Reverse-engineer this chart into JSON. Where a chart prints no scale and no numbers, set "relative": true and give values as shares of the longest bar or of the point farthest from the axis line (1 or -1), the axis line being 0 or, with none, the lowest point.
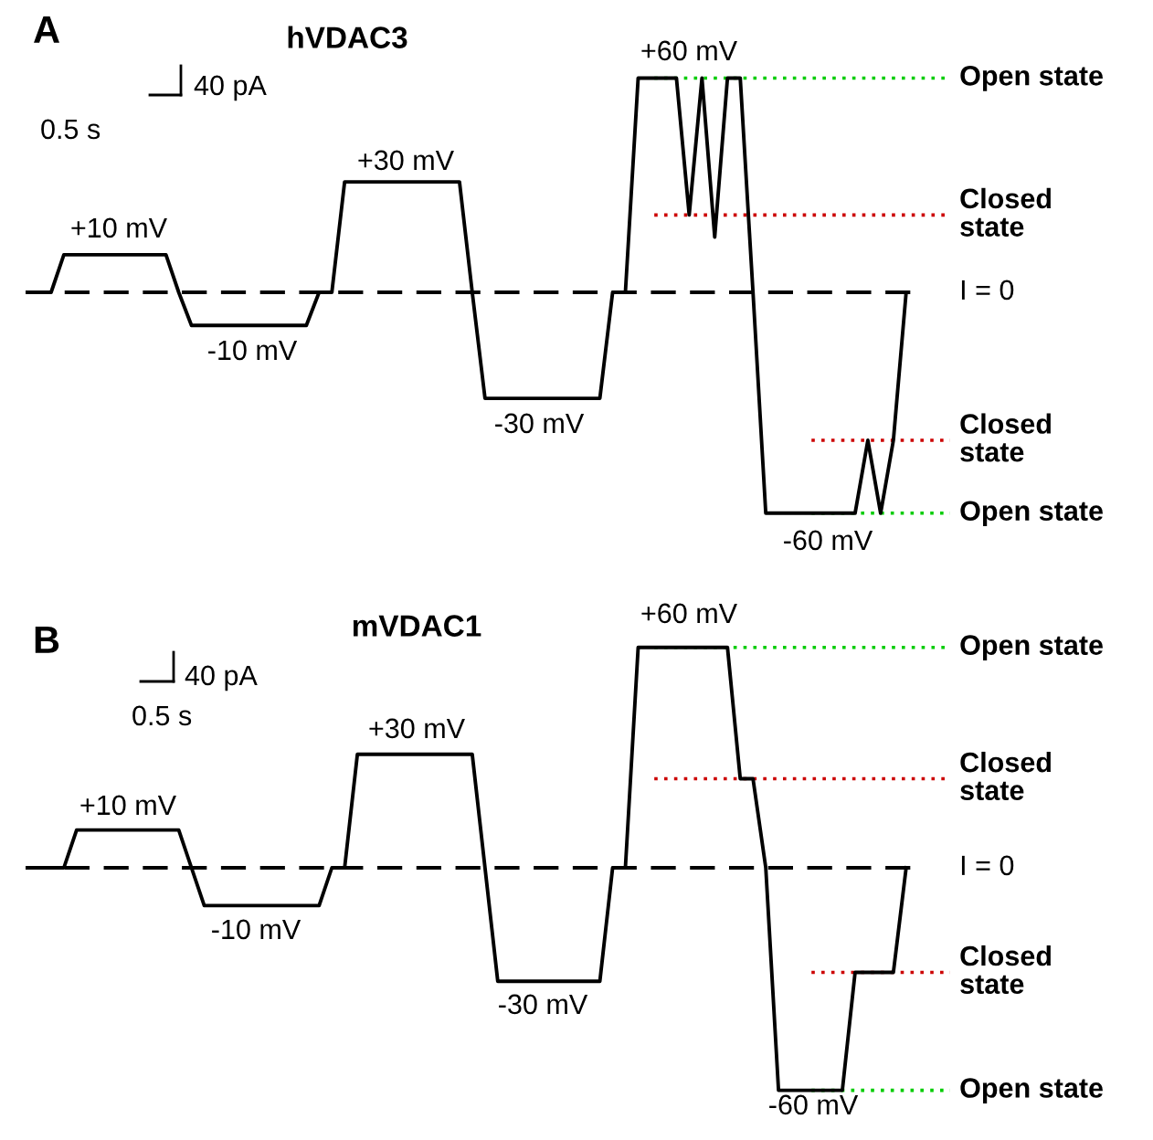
{
  "chart_data": [
    {
      "type": "line",
      "title": "hVDAC3",
      "relative": true,
      "tick_labels": false,
      "categories": [
        null,
        null,
        null,
        null,
        null,
        null,
        null,
        null,
        null,
        null,
        null,
        null,
        null,
        null,
        null,
        null,
        null,
        null,
        null,
        null,
        null,
        null,
        null,
        null,
        null,
        null,
        null,
        null,
        null,
        null,
        null,
        null,
        null,
        null,
        null,
        null,
        null,
        null,
        null,
        null,
        null,
        null,
        null,
        null,
        null,
        null,
        null,
        null,
        null,
        null,
        null,
        null,
        null,
        null,
        null,
        null,
        null,
        null,
        null,
        null,
        null,
        null,
        null,
        null,
        null,
        null,
        null,
        null,
        null,
        null
      ],
      "series": [
        {
          "color": "#000000",
          "values": [
            0,
            0,
            0,
            0.17,
            0.17,
            0.17,
            0.17,
            0.17,
            0.17,
            0.17,
            0.17,
            0.17,
            0,
            -0.15,
            -0.15,
            -0.15,
            -0.15,
            -0.15,
            -0.15,
            -0.15,
            -0.15,
            -0.15,
            -0.15,
            0,
            0,
            0.5,
            0.5,
            0.5,
            0.5,
            0.5,
            0.5,
            0.5,
            0.5,
            0.5,
            0.5,
            0,
            -0.48,
            -0.48,
            -0.48,
            -0.48,
            -0.48,
            -0.48,
            -0.48,
            -0.48,
            -0.48,
            -0.48,
            0,
            0,
            0.97,
            0.97,
            0.97,
            0.97,
            0.35,
            0.97,
            0.25,
            0.97,
            0.97,
            0,
            -1,
            -1,
            -1,
            -1,
            -1,
            -1,
            -1,
            -1,
            -0.67,
            -1,
            -0.67,
            0
          ]
        }
      ],
      "ref_lines": [
        {
          "axis": "y",
          "value": 0.97,
          "label": "Open state",
          "color": "#00cc00",
          "line_style": "dotted"
        },
        {
          "axis": "y",
          "value": 0.35,
          "label": "Closed\nstate",
          "color": "#cc0000",
          "line_style": "dotted"
        },
        {
          "axis": "y",
          "value": 0,
          "label": "I = 0",
          "color": "#000000",
          "line_style": "dashed"
        },
        {
          "axis": "y",
          "value": -0.67,
          "label": "Closed\nstate",
          "color": "#cc0000",
          "line_style": "dotted"
        },
        {
          "axis": "y",
          "value": -1,
          "label": "Open state",
          "color": "#00cc00",
          "line_style": "dotted"
        }
      ],
      "annotations": [
        "A",
        "40 pA",
        "0.5 s",
        "+10 mV",
        "-10 mV",
        "+30 mV",
        "-30 mV",
        "+60 mV",
        "-60 mV"
      ]
    },
    {
      "type": "line",
      "title": "mVDAC1",
      "relative": true,
      "tick_labels": false,
      "categories": [
        null,
        null,
        null,
        null,
        null,
        null,
        null,
        null,
        null,
        null,
        null,
        null,
        null,
        null,
        null,
        null,
        null,
        null,
        null,
        null,
        null,
        null,
        null,
        null,
        null,
        null,
        null,
        null,
        null,
        null,
        null,
        null,
        null,
        null,
        null,
        null,
        null,
        null,
        null,
        null,
        null,
        null,
        null,
        null,
        null,
        null,
        null,
        null,
        null,
        null,
        null,
        null,
        null,
        null,
        null,
        null,
        null,
        null,
        null,
        null,
        null,
        null,
        null,
        null,
        null,
        null,
        null,
        null,
        null,
        null
      ],
      "series": [
        {
          "color": "#000000",
          "values": [
            0,
            0,
            0,
            0,
            0.17,
            0.17,
            0.17,
            0.17,
            0.17,
            0.17,
            0.17,
            0.17,
            0.17,
            0,
            -0.17,
            -0.17,
            -0.17,
            -0.17,
            -0.17,
            -0.17,
            -0.17,
            -0.17,
            -0.17,
            -0.17,
            0,
            0,
            0.51,
            0.51,
            0.51,
            0.51,
            0.51,
            0.51,
            0.51,
            0.51,
            0.51,
            0.51,
            0,
            -0.51,
            -0.51,
            -0.51,
            -0.51,
            -0.51,
            -0.51,
            -0.51,
            -0.51,
            -0.51,
            0,
            0,
            0.99,
            0.99,
            0.99,
            0.99,
            0.99,
            0.99,
            0.99,
            0.99,
            0.4,
            0.4,
            0,
            -1,
            -1,
            -1,
            -1,
            -1,
            -1,
            -0.47,
            -0.47,
            -0.47,
            -0.47,
            0
          ]
        }
      ],
      "ref_lines": [
        {
          "axis": "y",
          "value": 0.99,
          "label": "Open state",
          "color": "#00cc00",
          "line_style": "dotted"
        },
        {
          "axis": "y",
          "value": 0.4,
          "label": "Closed\nstate",
          "color": "#cc0000",
          "line_style": "dotted"
        },
        {
          "axis": "y",
          "value": 0,
          "label": "I = 0",
          "color": "#000000",
          "line_style": "dashed"
        },
        {
          "axis": "y",
          "value": -0.47,
          "label": "Closed\nstate",
          "color": "#cc0000",
          "line_style": "dotted"
        },
        {
          "axis": "y",
          "value": -1,
          "label": "Open state",
          "color": "#00cc00",
          "line_style": "dotted"
        }
      ],
      "annotations": [
        "B",
        "40 pA",
        "0.5 s",
        "+10 mV",
        "-10 mV",
        "+30 mV",
        "-30 mV",
        "+60 mV",
        "-60 mV"
      ]
    }
  ]
}
